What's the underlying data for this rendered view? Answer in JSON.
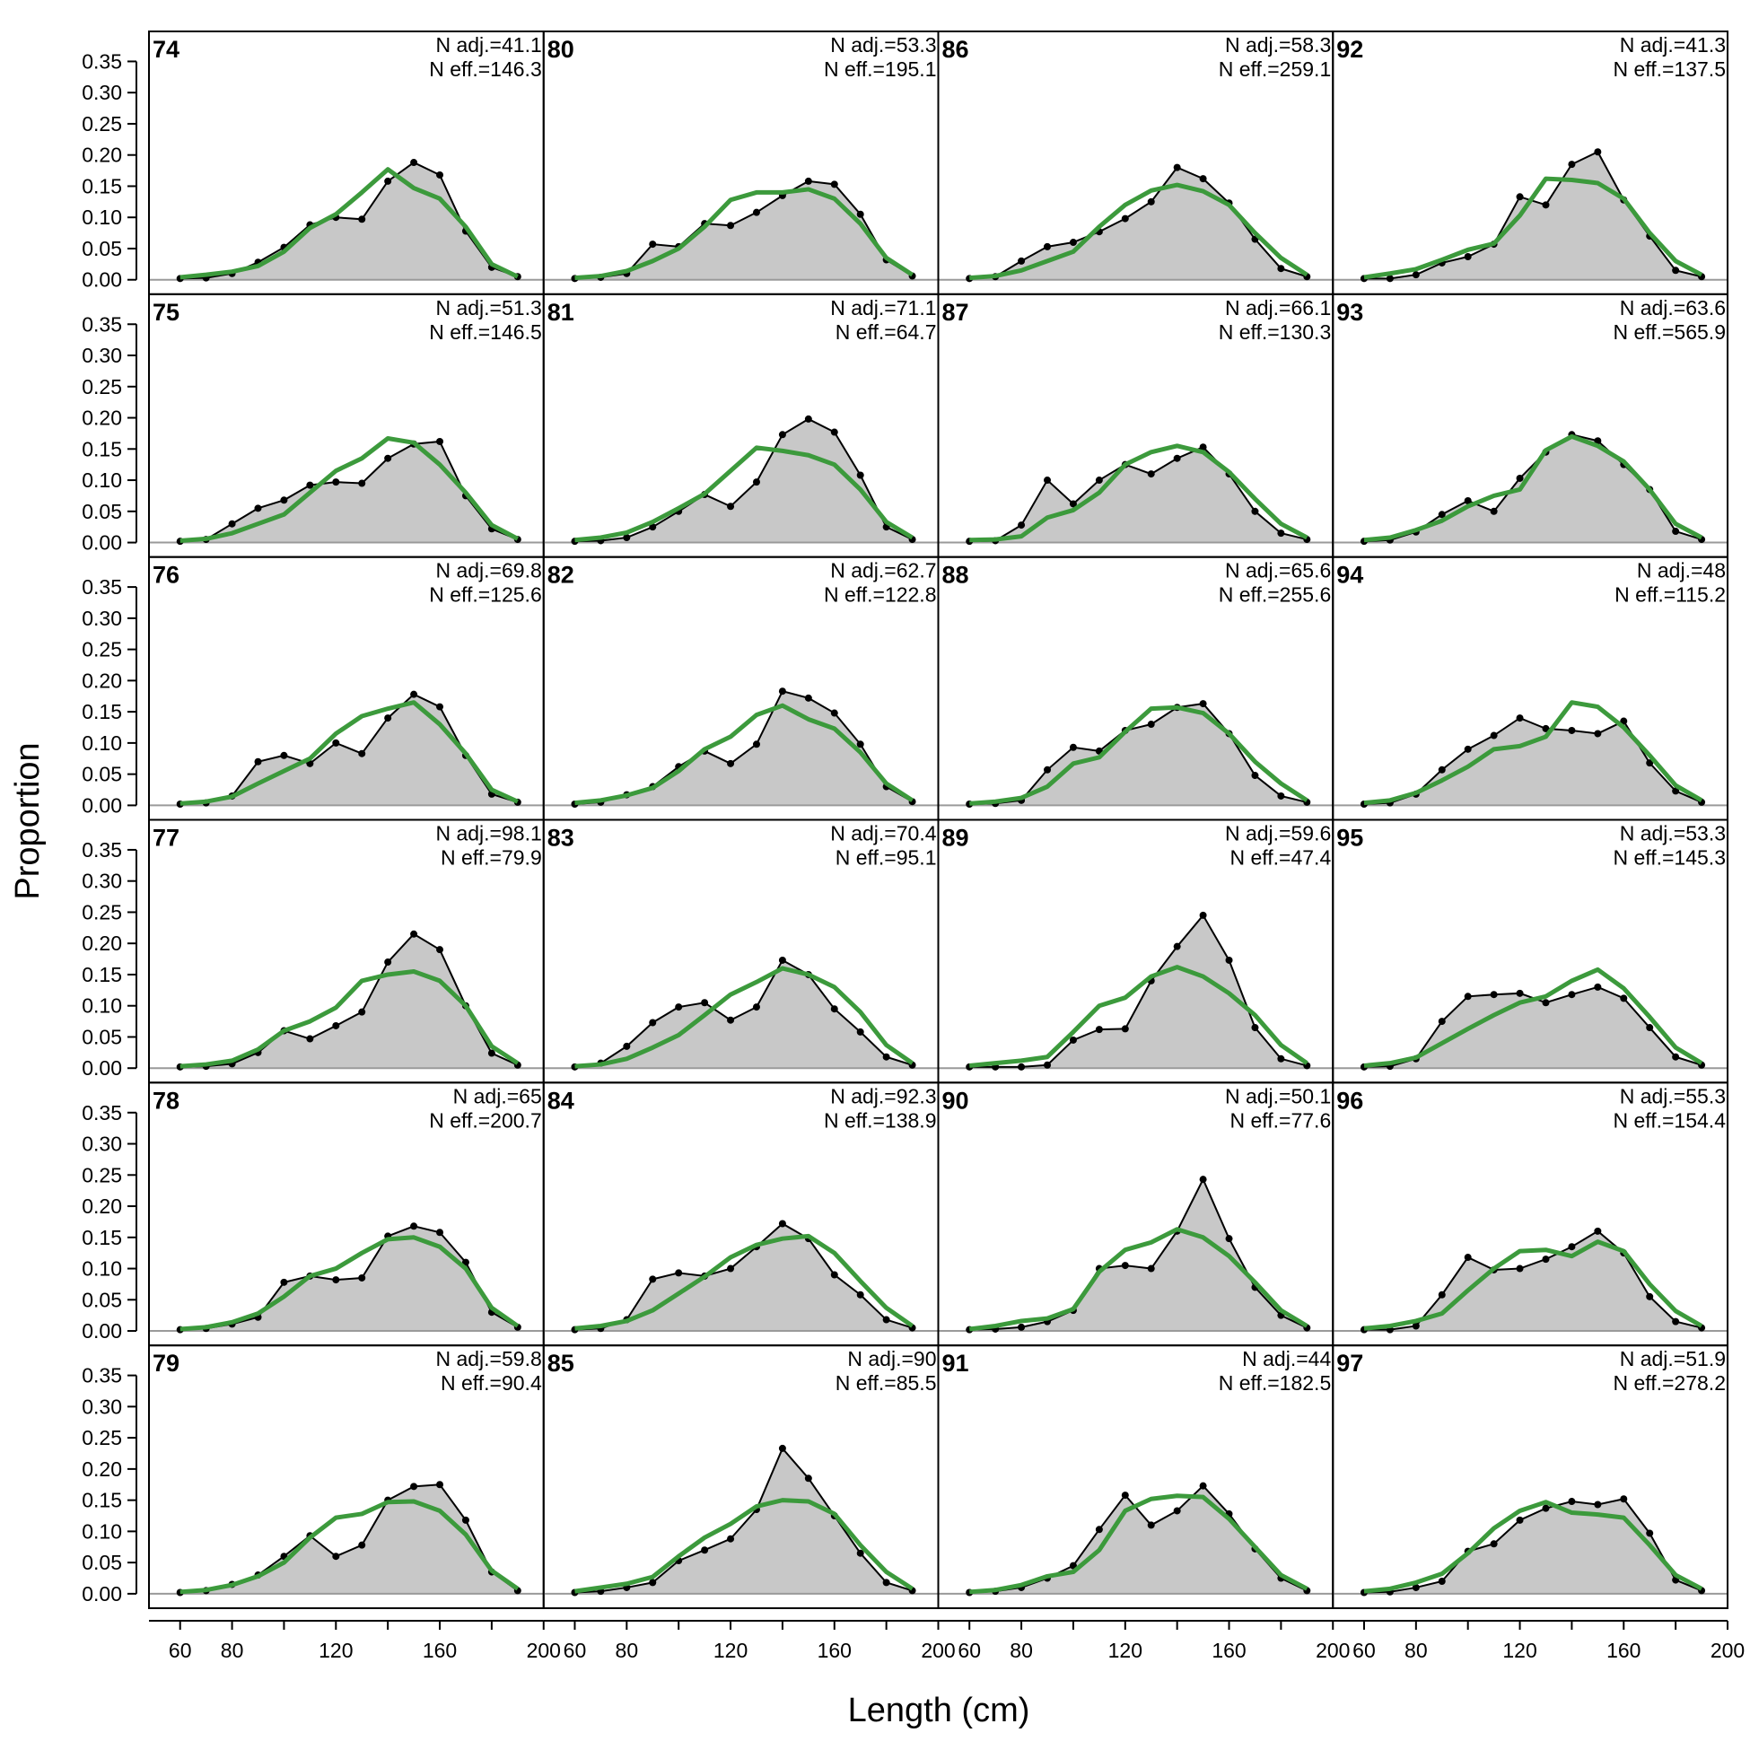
{
  "chart_data": {
    "type": "area",
    "xlabel": "Length (cm)",
    "ylabel": "Proportion",
    "xlim": [
      48,
      200
    ],
    "ylim": [
      0,
      0.38
    ],
    "x_ticks": [
      "60",
      "80",
      "120",
      "160",
      "200"
    ],
    "y_ticks": [
      "0.00",
      "0.05",
      "0.10",
      "0.15",
      "0.20",
      "0.25",
      "0.30",
      "0.35"
    ],
    "grid": false,
    "n_adj_prefix": "N adj.=",
    "n_eff_prefix": "N eff.=",
    "colors": {
      "observed_fill": "#c8c8c8",
      "observed_line": "#000000",
      "expected_line": "#3c9a3c",
      "baseline": "#9a9a9a"
    },
    "x": [
      60,
      70,
      80,
      90,
      100,
      110,
      120,
      130,
      140,
      150,
      160,
      170,
      180,
      190
    ],
    "panels": [
      {
        "label": "74",
        "n_adj": "41.1",
        "n_eff": "146.3",
        "obs": [
          0.002,
          0.003,
          0.01,
          0.028,
          0.052,
          0.088,
          0.1,
          0.097,
          0.158,
          0.188,
          0.168,
          0.078,
          0.02,
          0.005
        ],
        "exp": [
          0.004,
          0.008,
          0.013,
          0.022,
          0.045,
          0.083,
          0.105,
          0.14,
          0.177,
          0.147,
          0.13,
          0.085,
          0.025,
          0.005
        ]
      },
      {
        "label": "75",
        "n_adj": "51.3",
        "n_eff": "146.5",
        "obs": [
          0.002,
          0.005,
          0.03,
          0.055,
          0.068,
          0.092,
          0.097,
          0.095,
          0.135,
          0.158,
          0.162,
          0.075,
          0.022,
          0.005
        ],
        "exp": [
          0.003,
          0.006,
          0.015,
          0.03,
          0.045,
          0.08,
          0.115,
          0.135,
          0.167,
          0.16,
          0.125,
          0.08,
          0.028,
          0.006
        ]
      },
      {
        "label": "76",
        "n_adj": "69.8",
        "n_eff": "125.6",
        "obs": [
          0.002,
          0.004,
          0.015,
          0.07,
          0.08,
          0.067,
          0.1,
          0.083,
          0.14,
          0.178,
          0.158,
          0.08,
          0.018,
          0.005
        ],
        "exp": [
          0.003,
          0.006,
          0.014,
          0.035,
          0.055,
          0.075,
          0.115,
          0.143,
          0.155,
          0.165,
          0.13,
          0.083,
          0.025,
          0.006
        ]
      },
      {
        "label": "77",
        "n_adj": "98.1",
        "n_eff": "79.9",
        "obs": [
          0.002,
          0.003,
          0.007,
          0.025,
          0.06,
          0.047,
          0.068,
          0.09,
          0.17,
          0.215,
          0.19,
          0.1,
          0.024,
          0.005
        ],
        "exp": [
          0.003,
          0.006,
          0.012,
          0.03,
          0.06,
          0.075,
          0.097,
          0.14,
          0.15,
          0.155,
          0.14,
          0.1,
          0.035,
          0.008
        ]
      },
      {
        "label": "78",
        "n_adj": "65",
        "n_eff": "200.7",
        "obs": [
          0.002,
          0.004,
          0.011,
          0.022,
          0.078,
          0.088,
          0.082,
          0.085,
          0.152,
          0.168,
          0.158,
          0.11,
          0.03,
          0.006
        ],
        "exp": [
          0.003,
          0.006,
          0.014,
          0.028,
          0.055,
          0.088,
          0.1,
          0.125,
          0.147,
          0.15,
          0.135,
          0.1,
          0.037,
          0.008
        ]
      },
      {
        "label": "79",
        "n_adj": "59.8",
        "n_eff": "90.4",
        "obs": [
          0.002,
          0.005,
          0.015,
          0.03,
          0.06,
          0.093,
          0.06,
          0.078,
          0.15,
          0.172,
          0.175,
          0.118,
          0.035,
          0.005
        ],
        "exp": [
          0.003,
          0.006,
          0.014,
          0.028,
          0.05,
          0.09,
          0.122,
          0.128,
          0.147,
          0.148,
          0.133,
          0.095,
          0.037,
          0.008
        ]
      },
      {
        "label": "80",
        "n_adj": "53.3",
        "n_eff": "195.1",
        "obs": [
          0.002,
          0.004,
          0.01,
          0.057,
          0.053,
          0.09,
          0.087,
          0.108,
          0.135,
          0.158,
          0.153,
          0.105,
          0.032,
          0.006
        ],
        "exp": [
          0.003,
          0.006,
          0.014,
          0.03,
          0.05,
          0.085,
          0.128,
          0.14,
          0.14,
          0.145,
          0.13,
          0.09,
          0.035,
          0.008
        ]
      },
      {
        "label": "81",
        "n_adj": "71.1",
        "n_eff": "64.7",
        "obs": [
          0.002,
          0.003,
          0.008,
          0.025,
          0.05,
          0.077,
          0.058,
          0.097,
          0.173,
          0.198,
          0.177,
          0.108,
          0.025,
          0.005
        ],
        "exp": [
          0.004,
          0.008,
          0.016,
          0.033,
          0.055,
          0.078,
          0.115,
          0.152,
          0.147,
          0.14,
          0.125,
          0.085,
          0.033,
          0.008
        ]
      },
      {
        "label": "82",
        "n_adj": "62.7",
        "n_eff": "122.8",
        "obs": [
          0.002,
          0.005,
          0.017,
          0.03,
          0.062,
          0.087,
          0.067,
          0.098,
          0.183,
          0.172,
          0.148,
          0.098,
          0.03,
          0.006
        ],
        "exp": [
          0.004,
          0.008,
          0.016,
          0.028,
          0.055,
          0.09,
          0.11,
          0.145,
          0.16,
          0.138,
          0.123,
          0.085,
          0.035,
          0.008
        ]
      },
      {
        "label": "83",
        "n_adj": "70.4",
        "n_eff": "95.1",
        "obs": [
          0.002,
          0.008,
          0.035,
          0.073,
          0.098,
          0.105,
          0.077,
          0.098,
          0.173,
          0.15,
          0.095,
          0.058,
          0.018,
          0.005
        ],
        "exp": [
          0.003,
          0.006,
          0.015,
          0.033,
          0.053,
          0.085,
          0.118,
          0.138,
          0.16,
          0.15,
          0.13,
          0.09,
          0.037,
          0.008
        ]
      },
      {
        "label": "84",
        "n_adj": "92.3",
        "n_eff": "138.9",
        "obs": [
          0.002,
          0.004,
          0.018,
          0.083,
          0.093,
          0.088,
          0.1,
          0.135,
          0.172,
          0.148,
          0.09,
          0.058,
          0.018,
          0.005
        ],
        "exp": [
          0.004,
          0.008,
          0.016,
          0.033,
          0.06,
          0.087,
          0.118,
          0.138,
          0.148,
          0.152,
          0.125,
          0.08,
          0.037,
          0.008
        ]
      },
      {
        "label": "85",
        "n_adj": "90",
        "n_eff": "85.5",
        "obs": [
          0.002,
          0.004,
          0.01,
          0.018,
          0.053,
          0.07,
          0.088,
          0.135,
          0.233,
          0.185,
          0.125,
          0.065,
          0.018,
          0.005
        ],
        "exp": [
          0.004,
          0.01,
          0.016,
          0.027,
          0.06,
          0.09,
          0.112,
          0.14,
          0.15,
          0.148,
          0.128,
          0.078,
          0.035,
          0.008
        ]
      },
      {
        "label": "86",
        "n_adj": "58.3",
        "n_eff": "259.1",
        "obs": [
          0.002,
          0.005,
          0.03,
          0.053,
          0.06,
          0.077,
          0.098,
          0.125,
          0.18,
          0.162,
          0.123,
          0.065,
          0.018,
          0.005
        ],
        "exp": [
          0.003,
          0.006,
          0.015,
          0.03,
          0.045,
          0.085,
          0.12,
          0.143,
          0.152,
          0.142,
          0.12,
          0.075,
          0.035,
          0.008
        ]
      },
      {
        "label": "87",
        "n_adj": "66.1",
        "n_eff": "130.3",
        "obs": [
          0.002,
          0.003,
          0.028,
          0.1,
          0.062,
          0.1,
          0.125,
          0.11,
          0.135,
          0.153,
          0.11,
          0.05,
          0.015,
          0.005
        ],
        "exp": [
          0.004,
          0.005,
          0.01,
          0.04,
          0.052,
          0.08,
          0.125,
          0.145,
          0.155,
          0.145,
          0.113,
          0.07,
          0.03,
          0.008
        ]
      },
      {
        "label": "88",
        "n_adj": "65.6",
        "n_eff": "255.6",
        "obs": [
          0.002,
          0.003,
          0.008,
          0.057,
          0.093,
          0.087,
          0.12,
          0.13,
          0.157,
          0.163,
          0.115,
          0.048,
          0.015,
          0.005
        ],
        "exp": [
          0.003,
          0.006,
          0.012,
          0.03,
          0.067,
          0.077,
          0.118,
          0.155,
          0.157,
          0.148,
          0.115,
          0.07,
          0.035,
          0.008
        ]
      },
      {
        "label": "89",
        "n_adj": "59.6",
        "n_eff": "47.4",
        "obs": [
          0.002,
          0.002,
          0.002,
          0.005,
          0.045,
          0.062,
          0.063,
          0.14,
          0.195,
          0.245,
          0.173,
          0.065,
          0.015,
          0.004
        ],
        "exp": [
          0.004,
          0.008,
          0.012,
          0.018,
          0.058,
          0.1,
          0.113,
          0.147,
          0.162,
          0.147,
          0.12,
          0.085,
          0.037,
          0.008
        ]
      },
      {
        "label": "90",
        "n_adj": "50.1",
        "n_eff": "77.6",
        "obs": [
          0.002,
          0.003,
          0.006,
          0.015,
          0.033,
          0.1,
          0.105,
          0.1,
          0.16,
          0.243,
          0.148,
          0.07,
          0.025,
          0.005
        ],
        "exp": [
          0.003,
          0.008,
          0.016,
          0.02,
          0.035,
          0.095,
          0.13,
          0.142,
          0.163,
          0.15,
          0.12,
          0.078,
          0.033,
          0.008
        ]
      },
      {
        "label": "91",
        "n_adj": "44",
        "n_eff": "182.5",
        "obs": [
          0.002,
          0.004,
          0.01,
          0.025,
          0.045,
          0.103,
          0.158,
          0.11,
          0.133,
          0.173,
          0.128,
          0.072,
          0.025,
          0.005
        ],
        "exp": [
          0.003,
          0.006,
          0.014,
          0.028,
          0.035,
          0.07,
          0.133,
          0.152,
          0.157,
          0.155,
          0.12,
          0.075,
          0.03,
          0.008
        ]
      },
      {
        "label": "92",
        "n_adj": "41.3",
        "n_eff": "137.5",
        "obs": [
          0.002,
          0.002,
          0.008,
          0.027,
          0.037,
          0.057,
          0.133,
          0.12,
          0.185,
          0.205,
          0.128,
          0.07,
          0.015,
          0.005
        ],
        "exp": [
          0.004,
          0.01,
          0.017,
          0.032,
          0.048,
          0.058,
          0.103,
          0.162,
          0.16,
          0.155,
          0.13,
          0.075,
          0.03,
          0.008
        ]
      },
      {
        "label": "93",
        "n_adj": "63.6",
        "n_eff": "565.9",
        "obs": [
          0.002,
          0.004,
          0.017,
          0.045,
          0.067,
          0.05,
          0.103,
          0.145,
          0.173,
          0.163,
          0.125,
          0.085,
          0.018,
          0.005
        ],
        "exp": [
          0.004,
          0.008,
          0.02,
          0.035,
          0.058,
          0.075,
          0.085,
          0.148,
          0.17,
          0.155,
          0.13,
          0.085,
          0.03,
          0.008
        ]
      },
      {
        "label": "94",
        "n_adj": "48",
        "n_eff": "115.2",
        "obs": [
          0.002,
          0.004,
          0.018,
          0.057,
          0.09,
          0.112,
          0.14,
          0.123,
          0.12,
          0.115,
          0.135,
          0.068,
          0.023,
          0.005
        ],
        "exp": [
          0.004,
          0.008,
          0.02,
          0.04,
          0.062,
          0.09,
          0.095,
          0.11,
          0.165,
          0.158,
          0.125,
          0.08,
          0.032,
          0.008
        ]
      },
      {
        "label": "95",
        "n_adj": "53.3",
        "n_eff": "145.3",
        "obs": [
          0.002,
          0.003,
          0.015,
          0.075,
          0.115,
          0.118,
          0.12,
          0.105,
          0.118,
          0.13,
          0.112,
          0.065,
          0.018,
          0.005
        ],
        "exp": [
          0.004,
          0.008,
          0.017,
          0.04,
          0.063,
          0.085,
          0.105,
          0.115,
          0.14,
          0.158,
          0.128,
          0.082,
          0.033,
          0.008
        ]
      },
      {
        "label": "96",
        "n_adj": "55.3",
        "n_eff": "154.4",
        "obs": [
          0.002,
          0.002,
          0.008,
          0.058,
          0.118,
          0.098,
          0.1,
          0.115,
          0.135,
          0.16,
          0.125,
          0.055,
          0.015,
          0.005
        ],
        "exp": [
          0.004,
          0.008,
          0.016,
          0.028,
          0.065,
          0.1,
          0.128,
          0.13,
          0.12,
          0.143,
          0.128,
          0.075,
          0.032,
          0.008
        ]
      },
      {
        "label": "97",
        "n_adj": "51.9",
        "n_eff": "278.2",
        "obs": [
          0.002,
          0.003,
          0.01,
          0.02,
          0.068,
          0.08,
          0.118,
          0.137,
          0.148,
          0.143,
          0.152,
          0.097,
          0.022,
          0.005
        ],
        "exp": [
          0.004,
          0.008,
          0.018,
          0.032,
          0.065,
          0.105,
          0.133,
          0.147,
          0.13,
          0.127,
          0.122,
          0.078,
          0.03,
          0.008
        ]
      }
    ]
  }
}
